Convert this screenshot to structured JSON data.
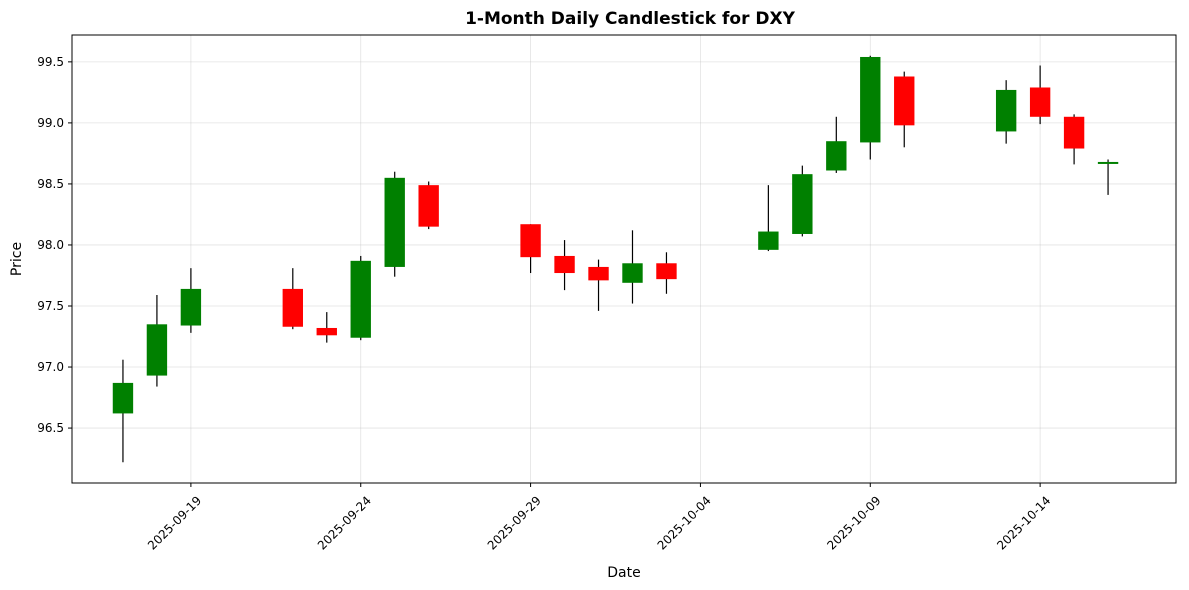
{
  "chart_data": {
    "type": "candlestick",
    "title": "1-Month Daily Candlestick for DXY",
    "xlabel": "Date",
    "ylabel": "Price",
    "ylim": [
      96.05,
      99.72
    ],
    "xlim": [
      "2025-09-15T12:00",
      "2025-10-18T00:00"
    ],
    "y_ticks": [
      96.5,
      97.0,
      97.5,
      98.0,
      98.5,
      99.0,
      99.5
    ],
    "y_tick_labels": [
      "96.5",
      "97.0",
      "97.5",
      "98.0",
      "98.5",
      "99.0",
      "99.5"
    ],
    "x_ticks": [
      "2025-09-19",
      "2025-09-24",
      "2025-09-29",
      "2025-10-04",
      "2025-10-09",
      "2025-10-14"
    ],
    "grid": true,
    "colors": {
      "up": "#008000",
      "down": "#ff0000",
      "wick": "#000000"
    },
    "candles": [
      {
        "date": "2025-09-17",
        "open": 96.62,
        "high": 97.06,
        "low": 96.22,
        "close": 96.87
      },
      {
        "date": "2025-09-18",
        "open": 96.93,
        "high": 97.59,
        "low": 96.84,
        "close": 97.35
      },
      {
        "date": "2025-09-19",
        "open": 97.34,
        "high": 97.81,
        "low": 97.28,
        "close": 97.64
      },
      {
        "date": "2025-09-22",
        "open": 97.64,
        "high": 97.81,
        "low": 97.31,
        "close": 97.33
      },
      {
        "date": "2025-09-23",
        "open": 97.32,
        "high": 97.45,
        "low": 97.2,
        "close": 97.26
      },
      {
        "date": "2025-09-24",
        "open": 97.24,
        "high": 97.91,
        "low": 97.22,
        "close": 97.87
      },
      {
        "date": "2025-09-25",
        "open": 97.82,
        "high": 98.6,
        "low": 97.74,
        "close": 98.55
      },
      {
        "date": "2025-09-26",
        "open": 98.49,
        "high": 98.52,
        "low": 98.13,
        "close": 98.15
      },
      {
        "date": "2025-09-29",
        "open": 98.17,
        "high": 98.17,
        "low": 97.77,
        "close": 97.9
      },
      {
        "date": "2025-09-30",
        "open": 97.91,
        "high": 98.04,
        "low": 97.63,
        "close": 97.77
      },
      {
        "date": "2025-10-01",
        "open": 97.82,
        "high": 97.88,
        "low": 97.46,
        "close": 97.71
      },
      {
        "date": "2025-10-02",
        "open": 97.69,
        "high": 98.12,
        "low": 97.52,
        "close": 97.85
      },
      {
        "date": "2025-10-03",
        "open": 97.85,
        "high": 97.94,
        "low": 97.6,
        "close": 97.72
      },
      {
        "date": "2025-10-06",
        "open": 97.96,
        "high": 98.49,
        "low": 97.95,
        "close": 98.11
      },
      {
        "date": "2025-10-07",
        "open": 98.09,
        "high": 98.65,
        "low": 98.07,
        "close": 98.58
      },
      {
        "date": "2025-10-08",
        "open": 98.61,
        "high": 99.05,
        "low": 98.59,
        "close": 98.85
      },
      {
        "date": "2025-10-09",
        "open": 98.84,
        "high": 99.55,
        "low": 98.7,
        "close": 99.54
      },
      {
        "date": "2025-10-10",
        "open": 99.38,
        "high": 99.42,
        "low": 98.8,
        "close": 98.98
      },
      {
        "date": "2025-10-13",
        "open": 98.93,
        "high": 99.35,
        "low": 98.83,
        "close": 99.27
      },
      {
        "date": "2025-10-14",
        "open": 99.29,
        "high": 99.47,
        "low": 98.99,
        "close": 99.05
      },
      {
        "date": "2025-10-15",
        "open": 99.05,
        "high": 99.07,
        "low": 98.66,
        "close": 98.79
      },
      {
        "date": "2025-10-16",
        "open": 98.67,
        "high": 98.7,
        "low": 98.41,
        "close": 98.68
      }
    ]
  }
}
